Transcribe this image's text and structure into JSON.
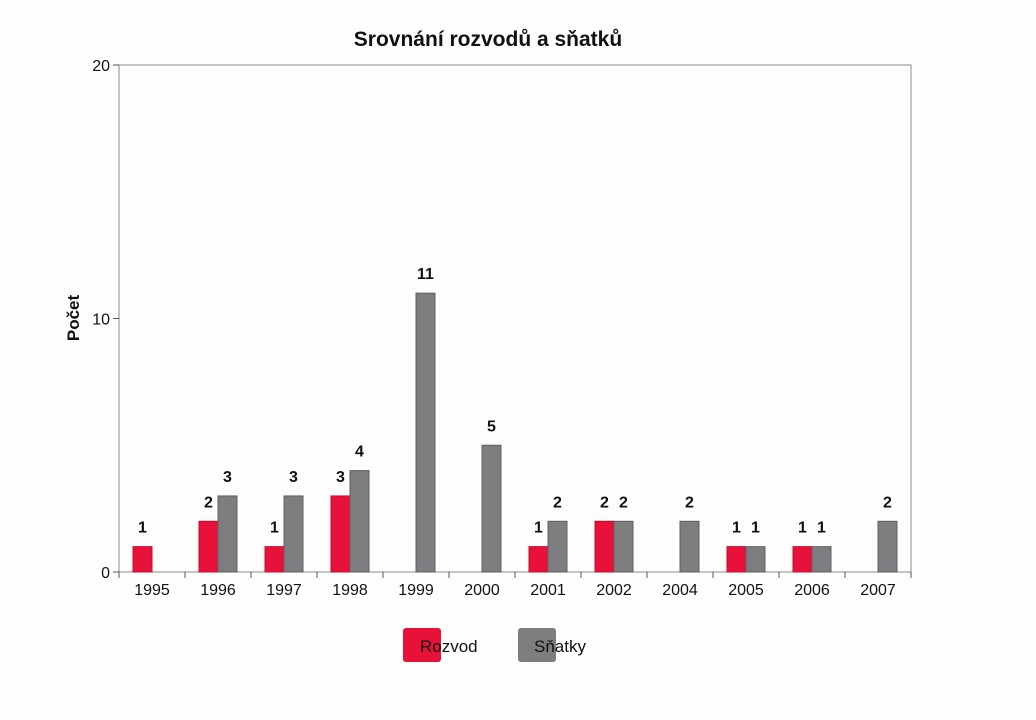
{
  "chart_data": {
    "type": "bar",
    "title": "Srovnání rozvodů a sňatků",
    "xlabel": "",
    "ylabel": "Počet",
    "ylim": [
      0,
      20
    ],
    "yticks": [
      "0",
      "10",
      "20"
    ],
    "categories": [
      "1995",
      "1996",
      "1997",
      "1998",
      "1999",
      "2000",
      "2001",
      "2002",
      "2004",
      "2005",
      "2006",
      "2007"
    ],
    "series": [
      {
        "name": "Rozvod",
        "color": "#e8113a",
        "values": [
          1,
          2,
          1,
          3,
          null,
          null,
          1,
          2,
          null,
          1,
          1,
          null
        ]
      },
      {
        "name": "Sňatky",
        "color": "#7e7e80",
        "values": [
          null,
          3,
          3,
          4,
          11,
          5,
          2,
          2,
          2,
          1,
          1,
          2
        ]
      }
    ],
    "legend_position": "bottom-center",
    "grid": false
  }
}
